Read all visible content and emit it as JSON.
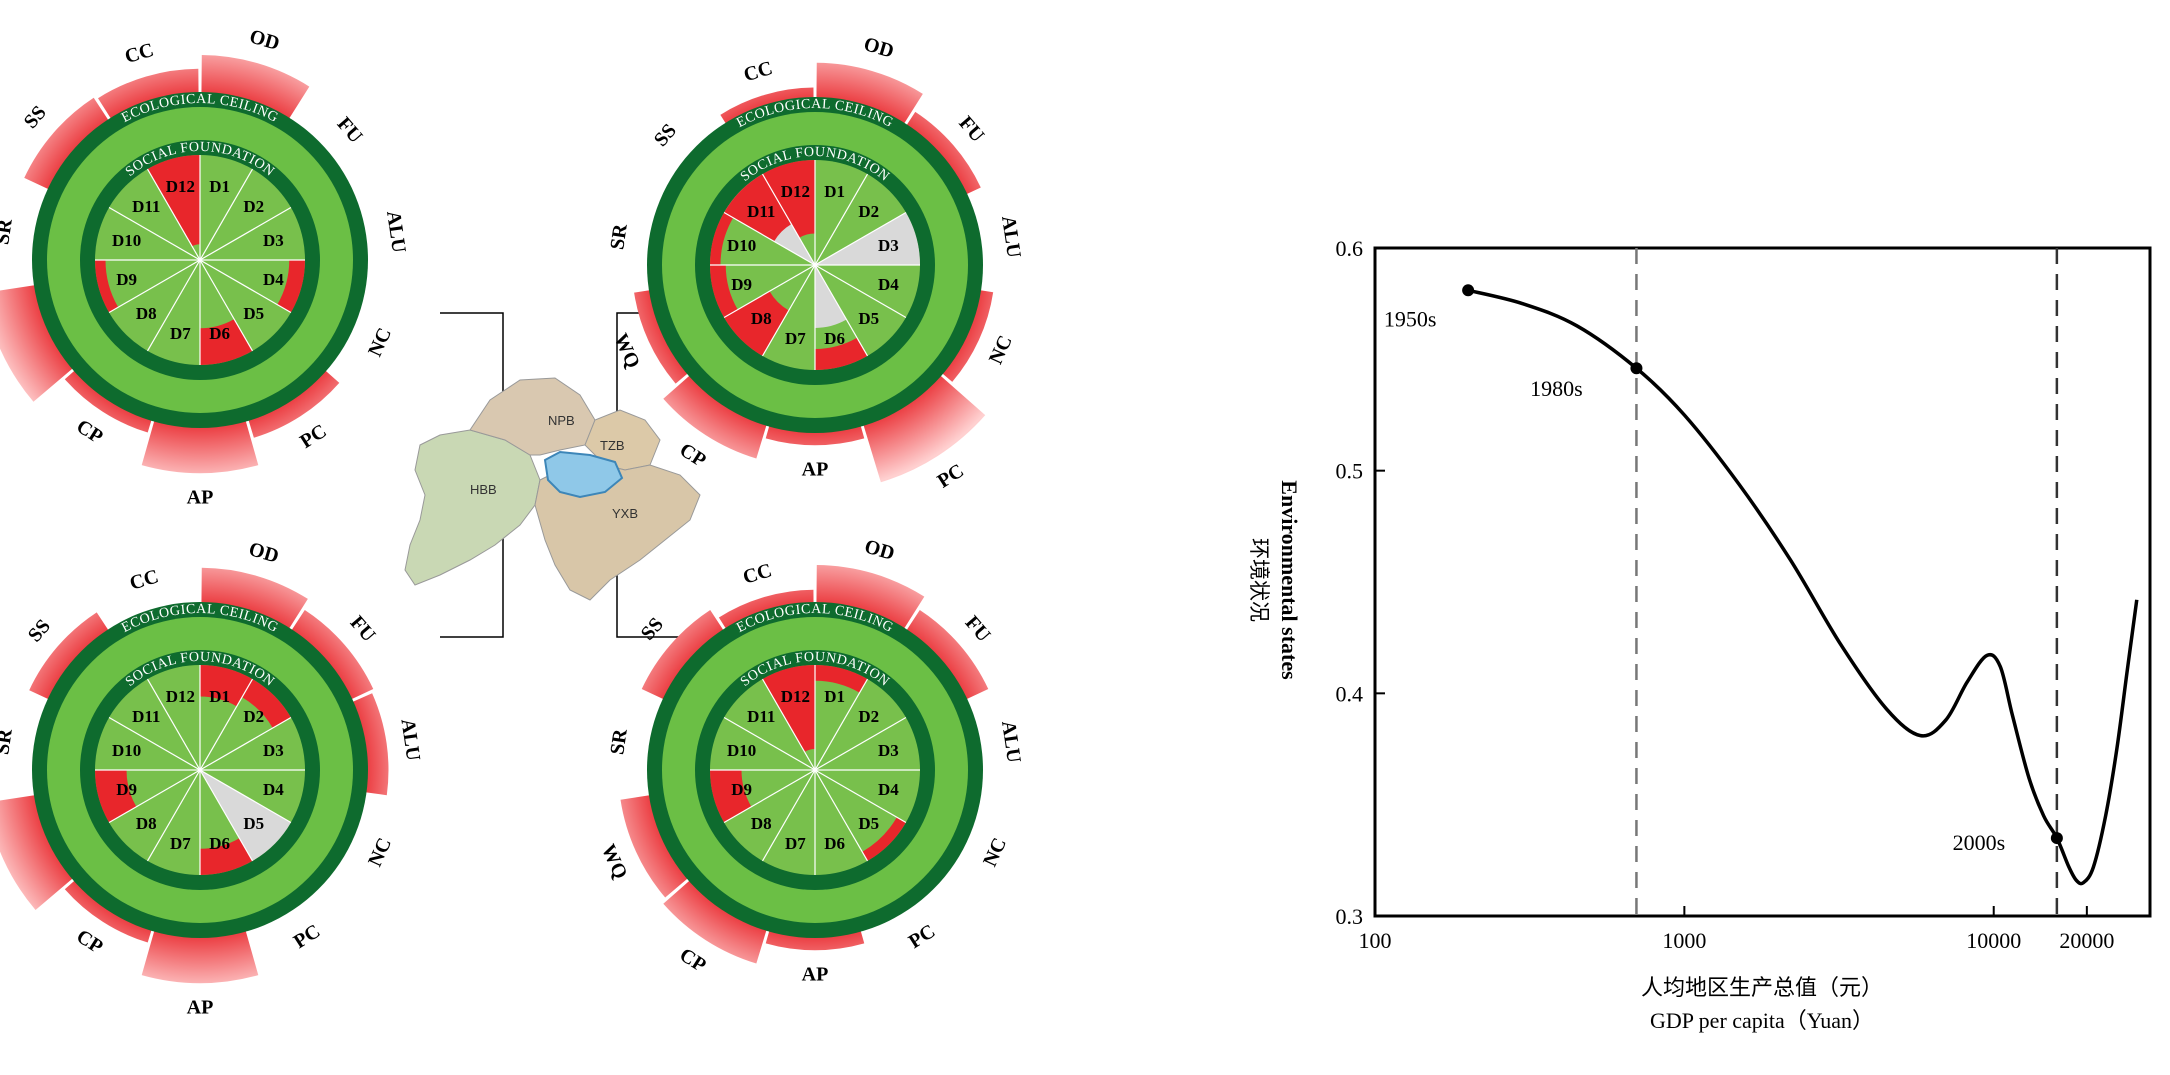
{
  "labels": {
    "ecological_ceiling": "ECOLOGICAL CEILING",
    "social_foundation": "SOCIAL FOUNDATION"
  },
  "map": {
    "regions": [
      "NPB",
      "TZB",
      "HBB",
      "YXB"
    ]
  },
  "outer_segments": [
    "OD",
    "FU",
    "ALU",
    "NC",
    "PC",
    "AP",
    "CP",
    "WQ",
    "SR",
    "SS",
    "CC"
  ],
  "inner_segments": [
    "D1",
    "D2",
    "D3",
    "D4",
    "D5",
    "D6",
    "D7",
    "D8",
    "D9",
    "D10",
    "D11",
    "D12"
  ],
  "colors": {
    "overshoot": "#e8262b",
    "dark_ring": "#0e6b2e",
    "light_ring": "#6bbf45",
    "inner_fill": "#78c04c",
    "shortfall_gray": "#d9d9d9"
  },
  "donuts": [
    {
      "name": "top-left",
      "overshoot": {
        "CC": 0.35,
        "OD": 0.6,
        "FU": 0,
        "ALU": 0,
        "NC": 0,
        "PC": 0.25,
        "AP": 0.75,
        "CP": 0.15,
        "WQ": 0.85,
        "SR": 0,
        "SS": 0.4
      },
      "shortfall": {
        "D1": 0,
        "D2": 0,
        "D3": 0,
        "D4": 0.15,
        "D5": 0,
        "D6": 0.35,
        "D7": 0,
        "D8": 0,
        "D9": 0.1,
        "D10": 0,
        "D11": 0,
        "D12": 0.85
      },
      "gray": {}
    },
    {
      "name": "top-right",
      "overshoot": {
        "CC": 0.1,
        "OD": 0.55,
        "FU": 0.2,
        "ALU": 0,
        "NC": 0.15,
        "PC": 1.0,
        "AP": 0.15,
        "CP": 0.55,
        "WQ": 0.2,
        "SR": 0,
        "SS": 0
      },
      "shortfall": {
        "D1": 0,
        "D2": 0,
        "D3": 0,
        "D4": 0,
        "D5": 0,
        "D6": 0.2,
        "D7": 0,
        "D8": 0.5,
        "D9": 0.15,
        "D10": 0.1,
        "D11": 0.55,
        "D12": 0.7
      },
      "gray": {
        "D3": 1,
        "D6": 0.6,
        "D11": 1
      }
    },
    {
      "name": "bottom-left",
      "overshoot": {
        "CC": 0,
        "OD": 0.55,
        "FU": 0.35,
        "ALU": 0.3,
        "NC": 0,
        "PC": 0,
        "AP": 0.75,
        "CP": 0.15,
        "WQ": 0.8,
        "SR": 0,
        "SS": 0.3
      },
      "shortfall": {
        "D1": 0.3,
        "D2": 0.2,
        "D3": 0,
        "D4": 0,
        "D5": 0,
        "D6": 0.25,
        "D7": 0,
        "D8": 0,
        "D9": 0.3,
        "D10": 0,
        "D11": 0,
        "D12": 0
      },
      "gray": {
        "D5": 1
      }
    },
    {
      "name": "bottom-right",
      "overshoot": {
        "CC": 0.15,
        "OD": 0.6,
        "FU": 0.35,
        "ALU": 0,
        "NC": 0,
        "PC": 0,
        "AP": 0.15,
        "CP": 0.55,
        "WQ": 0.45,
        "SR": 0,
        "SS": 0.35
      },
      "shortfall": {
        "D1": 0.15,
        "D2": 0,
        "D3": 0,
        "D4": 0,
        "D5": 0.1,
        "D6": 0,
        "D7": 0,
        "D8": 0,
        "D9": 0.3,
        "D10": 0,
        "D11": 0,
        "D12": 0.8
      },
      "gray": {}
    }
  ],
  "chart_data": {
    "type": "line",
    "xlabel_zh": "人均地区生产总值（元）",
    "xlabel_en": "GDP per capita（Yuan）",
    "ylabel_en": "Environmental states",
    "ylabel_zh": "环境状况",
    "xscale": "log",
    "xlim": [
      100,
      32000
    ],
    "ylim": [
      0.3,
      0.6
    ],
    "xticks": [
      100,
      1000,
      10000,
      20000
    ],
    "xtick_labels": [
      "100",
      "1000",
      "10000",
      "20000"
    ],
    "yticks": [
      0.3,
      0.4,
      0.5,
      0.6
    ],
    "ytick_labels": [
      "0.3",
      "0.4",
      "0.5",
      "0.6"
    ],
    "vlines": [
      700,
      16000
    ],
    "points": [
      {
        "label": "1950s",
        "x": 200,
        "y": 0.581
      },
      {
        "label": "1980s",
        "x": 700,
        "y": 0.546
      },
      {
        "label": "2000s",
        "x": 16000,
        "y": 0.335
      }
    ],
    "curve": {
      "x": [
        200,
        300,
        450,
        700,
        1000,
        1500,
        2200,
        3200,
        4500,
        5800,
        7000,
        8200,
        9500,
        10500,
        11500,
        13000,
        14500,
        16000,
        17500,
        18500,
        19500,
        21000,
        23000,
        25000,
        27000,
        29000
      ],
      "y": [
        0.581,
        0.575,
        0.565,
        0.546,
        0.525,
        0.494,
        0.46,
        0.422,
        0.393,
        0.381,
        0.388,
        0.405,
        0.417,
        0.412,
        0.39,
        0.362,
        0.345,
        0.335,
        0.322,
        0.316,
        0.315,
        0.322,
        0.345,
        0.375,
        0.41,
        0.442
      ]
    }
  }
}
